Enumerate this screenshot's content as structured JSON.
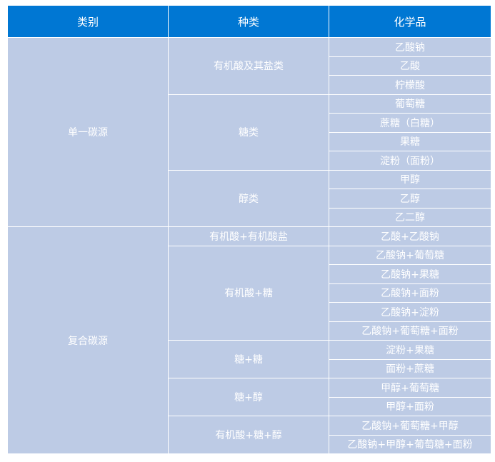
{
  "header": {
    "category": "类别",
    "kind": "种类",
    "chemical": "化学品"
  },
  "colors": {
    "header_bg": "#0077d3",
    "body_bg": "#bdcbe5",
    "text": "#ffffff"
  },
  "categories": [
    {
      "label": "单一碳源",
      "kinds": [
        {
          "label": "有机酸及其盐类",
          "chemicals": [
            "乙酸钠",
            "乙酸",
            "柠檬酸"
          ]
        },
        {
          "label": "糖类",
          "chemicals": [
            "葡萄糖",
            "蔗糖（白糖）",
            "果糖",
            "淀粉（面粉）"
          ]
        },
        {
          "label": "醇类",
          "chemicals": [
            "甲醇",
            "乙醇",
            "乙二醇"
          ]
        }
      ]
    },
    {
      "label": "复合碳源",
      "kinds": [
        {
          "label": "有机酸+有机酸盐",
          "chemicals": [
            "乙酸+乙酸钠"
          ]
        },
        {
          "label": "有机酸+糖",
          "chemicals": [
            "乙酸钠+葡萄糖",
            "乙酸钠+果糖",
            "乙酸钠+面粉",
            "乙酸钠+淀粉",
            "乙酸钠+葡萄糖+面粉"
          ]
        },
        {
          "label": "糖+糖",
          "chemicals": [
            "淀粉+果糖",
            "面粉+蔗糖"
          ]
        },
        {
          "label": "糖+醇",
          "chemicals": [
            "甲醇+葡萄糖",
            "甲醇+面粉"
          ]
        },
        {
          "label": "有机酸+糖+醇",
          "chemicals": [
            "乙酸钠+葡萄糖+甲醇",
            "乙酸钠+甲醇+葡萄糖+面粉"
          ]
        }
      ]
    }
  ]
}
